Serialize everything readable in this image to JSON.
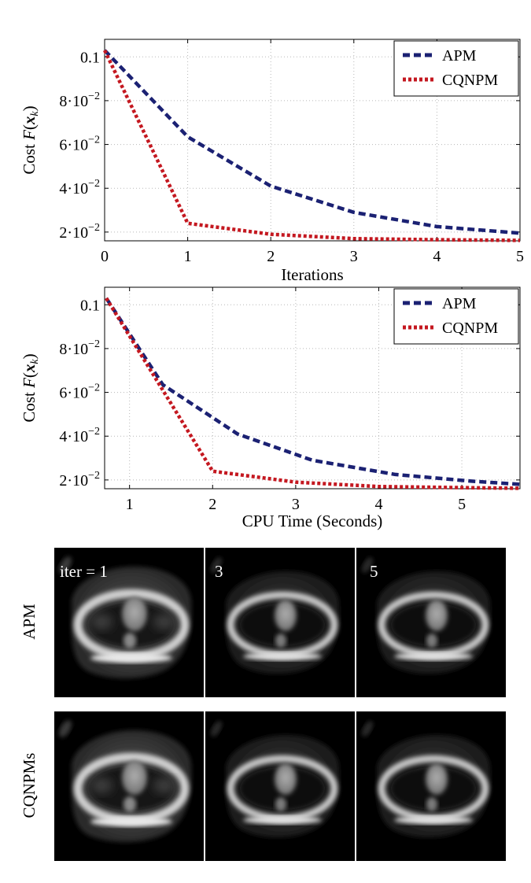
{
  "colors": {
    "apm": "#1b2173",
    "cqnpm": "#c41820",
    "grid": "#b8b8b8",
    "axis": "#000000"
  },
  "chart_data": [
    {
      "type": "line",
      "title": "",
      "xlabel": "Iterations",
      "ylabel_prefix": "Cost ",
      "ylabel_math": "F(x_k)",
      "xlim": [
        0,
        5
      ],
      "ylim": [
        0.016,
        0.108
      ],
      "xticks": [
        0,
        1,
        2,
        3,
        4,
        5
      ],
      "xtick_labels": [
        "0",
        "1",
        "2",
        "3",
        "4",
        "5"
      ],
      "yticks": [
        0.02,
        0.04,
        0.06,
        0.08,
        0.1
      ],
      "ytick_labels": [
        {
          "mant": "2",
          "exp": "-2"
        },
        {
          "mant": "4",
          "exp": "-2"
        },
        {
          "mant": "6",
          "exp": "-2"
        },
        {
          "mant": "8",
          "exp": "-2"
        },
        {
          "mant": "0.1",
          "exp": ""
        }
      ],
      "grid": true,
      "legend": "top-right",
      "series": [
        {
          "name": "APM",
          "style": "dashed",
          "x": [
            0,
            1,
            2,
            3,
            4,
            5
          ],
          "y": [
            0.103,
            0.0635,
            0.041,
            0.029,
            0.0225,
            0.0195
          ]
        },
        {
          "name": "CQNPM",
          "style": "dotted",
          "x": [
            0,
            1,
            2,
            3,
            4,
            5
          ],
          "y": [
            0.103,
            0.024,
            0.019,
            0.017,
            0.0165,
            0.0162
          ]
        }
      ]
    },
    {
      "type": "line",
      "title": "",
      "xlabel": "CPU Time (Seconds)",
      "ylabel_prefix": "Cost ",
      "ylabel_math": "F(x_k)",
      "xlim": [
        0.7,
        5.7
      ],
      "ylim": [
        0.016,
        0.108
      ],
      "xticks": [
        1,
        2,
        3,
        4,
        5
      ],
      "xtick_labels": [
        "1",
        "2",
        "3",
        "4",
        "5"
      ],
      "yticks": [
        0.02,
        0.04,
        0.06,
        0.08,
        0.1
      ],
      "ytick_labels": [
        {
          "mant": "2",
          "exp": "-2"
        },
        {
          "mant": "4",
          "exp": "-2"
        },
        {
          "mant": "6",
          "exp": "-2"
        },
        {
          "mant": "8",
          "exp": "-2"
        },
        {
          "mant": "0.1",
          "exp": ""
        }
      ],
      "grid": true,
      "legend": "top-right",
      "series": [
        {
          "name": "APM",
          "style": "dashed",
          "x": [
            0.72,
            1.4,
            2.3,
            3.2,
            4.2,
            5.1,
            5.7
          ],
          "y": [
            0.103,
            0.0635,
            0.041,
            0.029,
            0.0225,
            0.0195,
            0.018
          ]
        },
        {
          "name": "CQNPM",
          "style": "dotted",
          "x": [
            0.72,
            2.0,
            3.0,
            4.0,
            5.0,
            5.7
          ],
          "y": [
            0.103,
            0.024,
            0.019,
            0.017,
            0.0165,
            0.0162
          ]
        }
      ]
    }
  ],
  "images": {
    "rows": [
      {
        "label": "APM",
        "overlays": [
          "iter = 1",
          "3",
          "5"
        ]
      },
      {
        "label": "CQNPMs",
        "overlays": [
          "",
          "",
          ""
        ]
      }
    ]
  }
}
